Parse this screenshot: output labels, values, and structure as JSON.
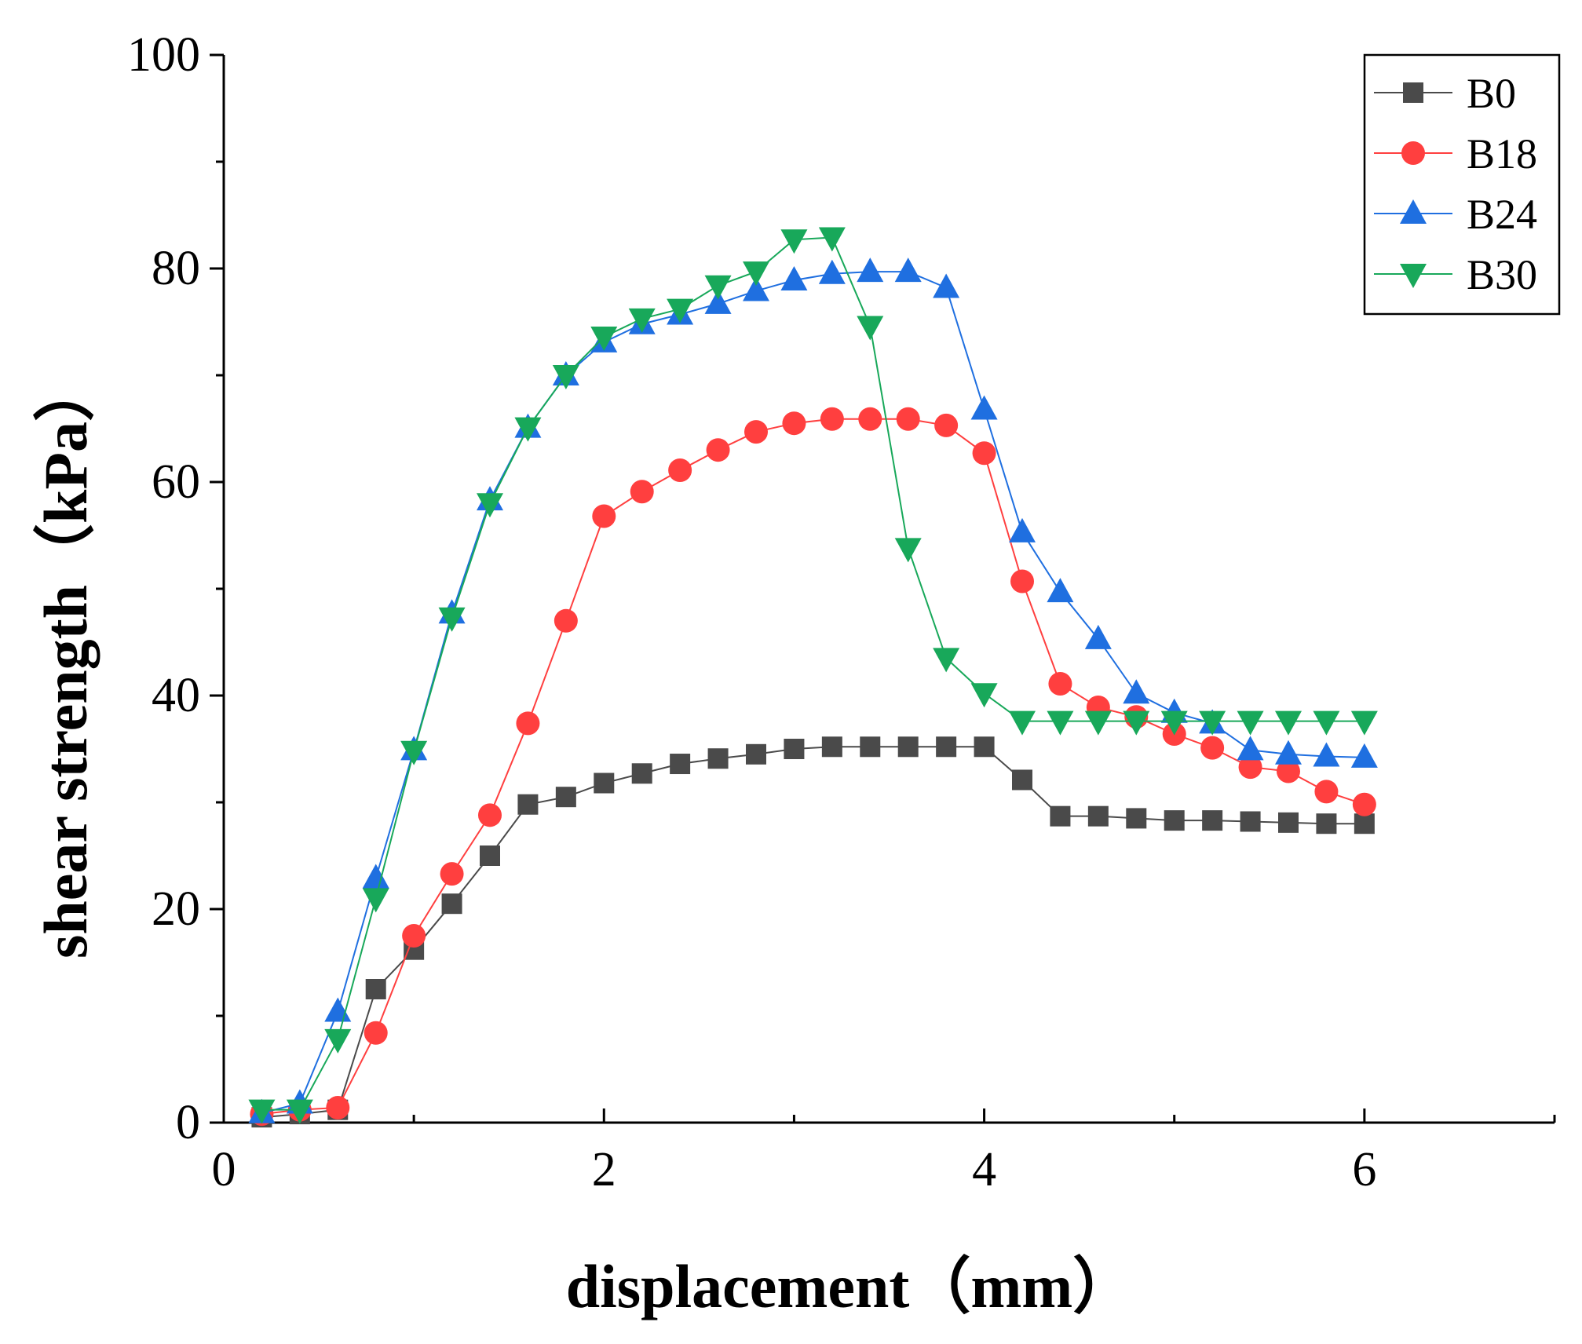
{
  "chart_data": {
    "type": "line",
    "xlabel": "displacement（mm）",
    "ylabel": "shear strength（kPa）",
    "xlim": [
      0,
      7
    ],
    "ylim": [
      0,
      100
    ],
    "x_ticks": [
      0,
      2,
      4,
      6
    ],
    "y_ticks": [
      0,
      20,
      40,
      60,
      80,
      100
    ],
    "grid": false,
    "legend_position": "top-right",
    "x": [
      0.2,
      0.4,
      0.6,
      0.8,
      1.0,
      1.2,
      1.4,
      1.6,
      1.8,
      2.0,
      2.2,
      2.4,
      2.6,
      2.8,
      3.0,
      3.2,
      3.4,
      3.6,
      3.8,
      4.0,
      4.2,
      4.4,
      4.6,
      4.8,
      5.0,
      5.2,
      5.4,
      5.6,
      5.8,
      6.0
    ],
    "series": [
      {
        "name": "B0",
        "color": "#4a4a4a",
        "marker": "square",
        "values": [
          0.5,
          0.8,
          1.2,
          12.5,
          16.2,
          20.5,
          25.0,
          29.8,
          30.5,
          31.8,
          32.7,
          33.6,
          34.1,
          34.5,
          35.0,
          35.2,
          35.2,
          35.2,
          35.2,
          35.2,
          32.1,
          28.7,
          28.7,
          28.5,
          28.3,
          28.3,
          28.2,
          28.1,
          28.0,
          28.0
        ]
      },
      {
        "name": "B18",
        "color": "#ff3f3f",
        "marker": "circle",
        "values": [
          0.8,
          1.2,
          1.4,
          8.4,
          17.5,
          23.3,
          28.8,
          37.4,
          47.0,
          56.8,
          59.1,
          61.1,
          63.0,
          64.7,
          65.5,
          65.9,
          65.9,
          65.9,
          65.3,
          62.7,
          50.7,
          41.1,
          38.9,
          38.0,
          36.4,
          35.1,
          33.3,
          32.9,
          31.0,
          29.8
        ]
      },
      {
        "name": "B24",
        "color": "#1f6fe0",
        "marker": "triangle-up",
        "values": [
          0.9,
          1.8,
          10.4,
          22.9,
          34.9,
          47.7,
          58.3,
          65.1,
          70.0,
          73.1,
          74.8,
          75.7,
          76.7,
          77.9,
          78.9,
          79.5,
          79.7,
          79.7,
          78.2,
          66.8,
          55.3,
          49.7,
          45.3,
          40.2,
          38.4,
          37.4,
          34.9,
          34.5,
          34.3,
          34.2
        ]
      },
      {
        "name": "B30",
        "color": "#18a85a",
        "marker": "triangle-down",
        "values": [
          1.2,
          1.2,
          7.8,
          21.0,
          34.8,
          47.3,
          58.0,
          65.1,
          70.0,
          73.6,
          75.3,
          76.2,
          78.4,
          79.7,
          82.7,
          82.9,
          74.6,
          53.8,
          43.5,
          40.2,
          37.6,
          37.6,
          37.6,
          37.6,
          37.6,
          37.6,
          37.6,
          37.6,
          37.6,
          37.6
        ]
      }
    ]
  }
}
